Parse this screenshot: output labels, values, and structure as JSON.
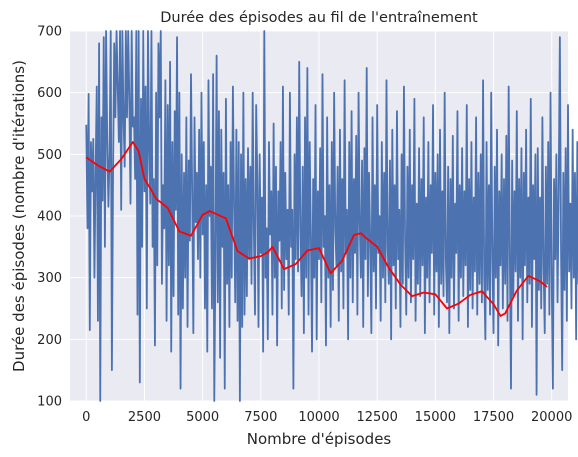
{
  "chart_data": {
    "type": "line",
    "title": "Durée des épisodes au fil de l'entraînement",
    "xlabel": "Nombre d'épisodes",
    "ylabel": "Durée des épisodes (nombre d'itérations)",
    "xlim": [
      -700,
      20700
    ],
    "ylim": [
      100,
      700
    ],
    "xticks": [
      0,
      2500,
      5000,
      7500,
      10000,
      12500,
      15000,
      17500,
      20000
    ],
    "yticks": [
      100,
      200,
      300,
      400,
      500,
      600,
      700
    ],
    "grid": true,
    "legend": "none",
    "colors": {
      "background": "#eaeaf2",
      "grid": "#ffffff",
      "raw": "#4c72b0",
      "smoothed": "#ff0000"
    },
    "series": [
      {
        "x_start": 0,
        "x_step": 50,
        "values": [
          548,
          380,
          598,
          215,
          520,
          440,
          525,
          300,
          470,
          610,
          230,
          680,
          100,
          560,
          425,
          690,
          350,
          700,
          525,
          415,
          500,
          700,
          150,
          470,
          680,
          560,
          700,
          610,
          520,
          700,
          410,
          700,
          560,
          480,
          710,
          560,
          700,
          590,
          420,
          700,
          545,
          560,
          460,
          700,
          240,
          700,
          130,
          590,
          350,
          700,
          440,
          610,
          250,
          700,
          520,
          420,
          700,
          350,
          460,
          190,
          600,
          320,
          680,
          560,
          700,
          290,
          450,
          380,
          620,
          230,
          580,
          320,
          650,
          180,
          520,
          270,
          570,
          410,
          690,
          240,
          600,
          120,
          500,
          250,
          470,
          300,
          560,
          220,
          490,
          360,
          630,
          440,
          210,
          560,
          390,
          470,
          330,
          540,
          300,
          600,
          370,
          520,
          250,
          450,
          180,
          620,
          400,
          480,
          250,
          630,
          100,
          330,
          660,
          260,
          570,
          170,
          540,
          350,
          470,
          120,
          590,
          290,
          450,
          220,
          520,
          300,
          610,
          420,
          260,
          540,
          230,
          520,
          100,
          500,
          220,
          600,
          240,
          460,
          270,
          510,
          330,
          480,
          290,
          600,
          380,
          240,
          580,
          460,
          220,
          500,
          340,
          430,
          180,
          700,
          300,
          380,
          200,
          520,
          370,
          440,
          240,
          550,
          300,
          480,
          190,
          440,
          360,
          520,
          250,
          610,
          280,
          470,
          330,
          410,
          240,
          600,
          350,
          410,
          120,
          500,
          330,
          560,
          310,
          650,
          380,
          270,
          480,
          210,
          560,
          300,
          640,
          240,
          520,
          370,
          180,
          460,
          300,
          580,
          200,
          440,
          330,
          510,
          260,
          630,
          350,
          400,
          190,
          560,
          300,
          450,
          220,
          520,
          280,
          600,
          380,
          320,
          480,
          230,
          540,
          310,
          460,
          250,
          620,
          340,
          410,
          200,
          520,
          300,
          570,
          260,
          460,
          340,
          530,
          240,
          600,
          390,
          300,
          490,
          220,
          510,
          330,
          640,
          270,
          470,
          360,
          210,
          560,
          310,
          450,
          250,
          580,
          340,
          400,
          230,
          520,
          300,
          470,
          260,
          620,
          350,
          290,
          490,
          200,
          540,
          320,
          450,
          250,
          570,
          330,
          410,
          220,
          500,
          290,
          610,
          360,
          240,
          480,
          300,
          540,
          260,
          450,
          330,
          590,
          230,
          420,
          290,
          510,
          270,
          460,
          320,
          560,
          210,
          430,
          300,
          520,
          260,
          450,
          340,
          580,
          240,
          470,
          310,
          500,
          220,
          540,
          290,
          440,
          270,
          600,
          330,
          260,
          480,
          210,
          460,
          300,
          530,
          250,
          420,
          340,
          570,
          230,
          450,
          300,
          510,
          270,
          440,
          320,
          580,
          220,
          460,
          280,
          520,
          250,
          430,
          310,
          560,
          240,
          470,
          290,
          500,
          260,
          620,
          300,
          200,
          520,
          280,
          450,
          240,
          600,
          330,
          210,
          480,
          300,
          540,
          190,
          440,
          320,
          500,
          250,
          460,
          290,
          530,
          230,
          610,
          340,
          120,
          490,
          270,
          440,
          310,
          570,
          230,
          460,
          300,
          510,
          200,
          470,
          320,
          540,
          260,
          430,
          290,
          590,
          220,
          450,
          330,
          500,
          110,
          510,
          280,
          430,
          250,
          560,
          320,
          210,
          480,
          290,
          520,
          240,
          600,
          300,
          120,
          460,
          330,
          500,
          260,
          440,
          690,
          350,
          150,
          470,
          280,
          510,
          230,
          580,
          310,
          420,
          250,
          540,
          300,
          470,
          200,
          520,
          290,
          450,
          260,
          560,
          120
        ]
      },
      {
        "x": [
          0,
          500,
          1000,
          1500,
          2000,
          2250,
          2500,
          2750,
          3000,
          3500,
          4000,
          4500,
          5000,
          5300,
          5600,
          6000,
          6500,
          7000,
          7500,
          7800,
          8000,
          8500,
          9000,
          9500,
          10000,
          10500,
          11000,
          11500,
          11800,
          12000,
          12500,
          13000,
          13500,
          14000,
          14500,
          15000,
          15500,
          16000,
          16500,
          17000,
          17500,
          17800,
          18000,
          18500,
          19000,
          19500,
          19800
        ],
        "values": [
          495,
          482,
          472,
          492,
          520,
          505,
          460,
          445,
          428,
          413,
          375,
          368,
          402,
          408,
          403,
          396,
          343,
          331,
          335,
          341,
          350,
          314,
          322,
          344,
          348,
          307,
          328,
          369,
          372,
          365,
          350,
          316,
          289,
          270,
          276,
          273,
          250,
          258,
          272,
          278,
          257,
          238,
          242,
          279,
          303,
          294,
          285
        ]
      }
    ]
  }
}
